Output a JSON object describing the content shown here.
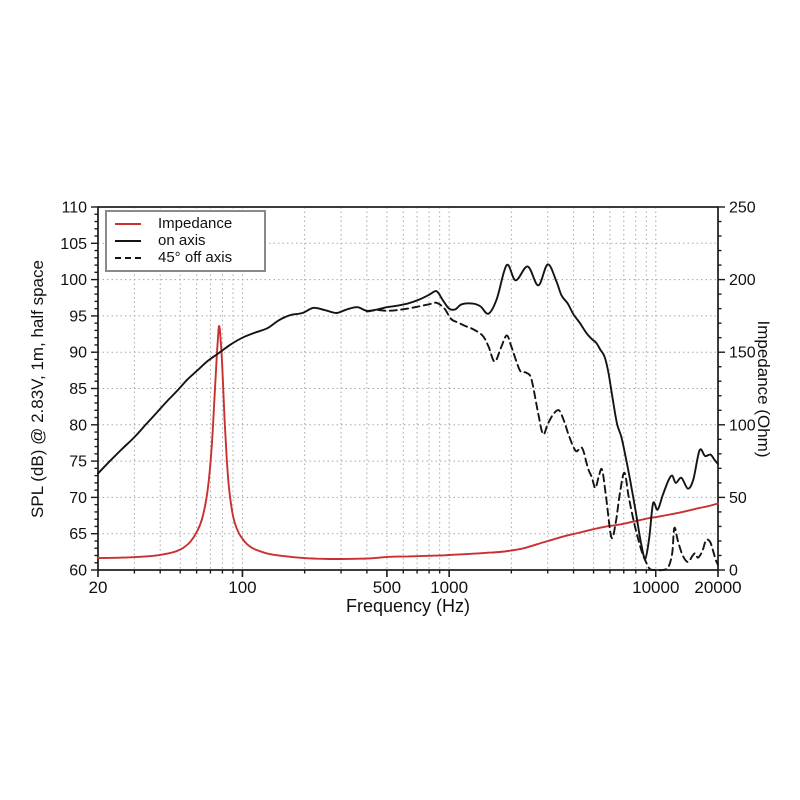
{
  "chart_data": {
    "type": "line",
    "title": "",
    "xlabel": "Frequency (Hz)",
    "ylabel_left": "SPL (dB) @ 2.83V, 1m, half space",
    "ylabel_right": "Impedance (Ohm)",
    "x_scale": "log",
    "x_range": [
      20,
      20000
    ],
    "y_left_range": [
      60,
      110
    ],
    "y_left_major_step": 5,
    "y_left_minor_step": 1,
    "y_right_range": [
      0,
      250
    ],
    "y_right_major_step": 50,
    "y_right_minor_step": 10,
    "grid": true,
    "grid_color": "#a8a8a8",
    "frame_color": "#1a1a1a",
    "x_tick_labels": [
      20,
      100,
      500,
      1000,
      10000,
      20000
    ],
    "y_left_tick_labels": [
      60,
      65,
      70,
      75,
      80,
      85,
      90,
      95,
      100,
      105,
      110
    ],
    "y_right_tick_labels": [
      0,
      50,
      100,
      150,
      200,
      250
    ],
    "legend_position": "top-left",
    "legend": [
      {
        "label": "Impedance",
        "color": "#c93030",
        "style": "solid"
      },
      {
        "label": "on axis",
        "color": "#141414",
        "style": "solid"
      },
      {
        "label": "45° off axis",
        "color": "#141414",
        "style": "dashed"
      }
    ],
    "series": [
      {
        "name": "Impedance",
        "axis": "right",
        "color": "#c93030",
        "style": "solid",
        "unit": "Ohm",
        "points": [
          [
            20,
            8.2
          ],
          [
            24,
            8.4
          ],
          [
            28,
            8.7
          ],
          [
            32,
            9.1
          ],
          [
            36,
            9.6
          ],
          [
            40,
            10.4
          ],
          [
            44,
            11.5
          ],
          [
            48,
            13
          ],
          [
            52,
            15.5
          ],
          [
            56,
            19.5
          ],
          [
            60,
            26
          ],
          [
            64,
            36
          ],
          [
            68,
            56
          ],
          [
            71,
            85
          ],
          [
            73,
            115
          ],
          [
            75,
            145
          ],
          [
            76,
            158
          ],
          [
            77,
            168
          ],
          [
            78,
            163
          ],
          [
            79,
            152
          ],
          [
            80,
            138
          ],
          [
            82,
            103
          ],
          [
            84,
            76
          ],
          [
            86,
            57
          ],
          [
            89,
            41
          ],
          [
            92,
            32
          ],
          [
            96,
            25.5
          ],
          [
            100,
            21.5
          ],
          [
            105,
            18
          ],
          [
            112,
            15
          ],
          [
            120,
            13.2
          ],
          [
            130,
            11.6
          ],
          [
            142,
            10.5
          ],
          [
            158,
            9.6
          ],
          [
            175,
            8.9
          ],
          [
            200,
            8.2
          ],
          [
            230,
            7.8
          ],
          [
            260,
            7.6
          ],
          [
            300,
            7.6
          ],
          [
            350,
            7.7
          ],
          [
            400,
            7.9
          ],
          [
            450,
            8.4
          ],
          [
            500,
            9
          ],
          [
            560,
            9.2
          ],
          [
            630,
            9.4
          ],
          [
            700,
            9.5
          ],
          [
            800,
            9.8
          ],
          [
            900,
            10
          ],
          [
            1000,
            10.3
          ],
          [
            1150,
            10.8
          ],
          [
            1300,
            11.2
          ],
          [
            1500,
            11.8
          ],
          [
            1750,
            12.4
          ],
          [
            2000,
            13.4
          ],
          [
            2300,
            15
          ],
          [
            2700,
            18
          ],
          [
            3100,
            20.5
          ],
          [
            3600,
            23.2
          ],
          [
            4200,
            25.5
          ],
          [
            4900,
            27.8
          ],
          [
            5700,
            29.8
          ],
          [
            6600,
            31.2
          ],
          [
            7700,
            33.2
          ],
          [
            9000,
            35.3
          ],
          [
            10500,
            37
          ],
          [
            12000,
            38.5
          ],
          [
            14000,
            40.5
          ],
          [
            16000,
            42.5
          ],
          [
            18000,
            44
          ],
          [
            20000,
            45.8
          ]
        ]
      },
      {
        "name": "45° off axis",
        "axis": "left",
        "color": "#141414",
        "style": "dashed",
        "unit": "dB",
        "points": [
          [
            400,
            95.6
          ],
          [
            450,
            95.8
          ],
          [
            500,
            95.7
          ],
          [
            560,
            95.8
          ],
          [
            630,
            96
          ],
          [
            710,
            96.3
          ],
          [
            800,
            96.6
          ],
          [
            870,
            96.8
          ],
          [
            950,
            96
          ],
          [
            1020,
            94.6
          ],
          [
            1100,
            94.1
          ],
          [
            1200,
            93.6
          ],
          [
            1300,
            93.2
          ],
          [
            1450,
            92.3
          ],
          [
            1550,
            90.8
          ],
          [
            1660,
            88.7
          ],
          [
            1780,
            90.6
          ],
          [
            1900,
            92.3
          ],
          [
            2000,
            90.8
          ],
          [
            2200,
            87.5
          ],
          [
            2350,
            87.2
          ],
          [
            2500,
            86.3
          ],
          [
            2700,
            81.5
          ],
          [
            2850,
            78.7
          ],
          [
            3000,
            80.1
          ],
          [
            3200,
            81.5
          ],
          [
            3400,
            82
          ],
          [
            3600,
            80.5
          ],
          [
            3800,
            78.5
          ],
          [
            4100,
            76.4
          ],
          [
            4400,
            76.8
          ],
          [
            4700,
            74
          ],
          [
            4900,
            72.8
          ],
          [
            5100,
            71.3
          ],
          [
            5300,
            72.9
          ],
          [
            5500,
            73.8
          ],
          [
            5750,
            70
          ],
          [
            6100,
            64.5
          ],
          [
            6400,
            66.5
          ],
          [
            6700,
            70.5
          ],
          [
            7050,
            73.4
          ],
          [
            7400,
            70
          ],
          [
            7900,
            66.2
          ],
          [
            8500,
            62.8
          ],
          [
            9000,
            61
          ],
          [
            9400,
            60.1
          ],
          [
            10000,
            60
          ],
          [
            10800,
            60
          ],
          [
            11500,
            60.4
          ],
          [
            12000,
            62.3
          ],
          [
            12300,
            65.8
          ],
          [
            12800,
            64
          ],
          [
            13500,
            62
          ],
          [
            14300,
            61.1
          ],
          [
            15000,
            61.9
          ],
          [
            15500,
            62.3
          ],
          [
            16000,
            61.7
          ],
          [
            16800,
            62.6
          ],
          [
            17500,
            64.1
          ],
          [
            18300,
            63.9
          ],
          [
            19000,
            62.5
          ],
          [
            19500,
            61.4
          ],
          [
            20000,
            60.7
          ]
        ]
      },
      {
        "name": "on axis",
        "axis": "left",
        "color": "#141414",
        "style": "solid",
        "unit": "dB",
        "points": [
          [
            20,
            73.3
          ],
          [
            23,
            75.1
          ],
          [
            26,
            76.6
          ],
          [
            30,
            78.3
          ],
          [
            34,
            80
          ],
          [
            38,
            81.5
          ],
          [
            43,
            83.2
          ],
          [
            48,
            84.6
          ],
          [
            54,
            86.2
          ],
          [
            60,
            87.4
          ],
          [
            68,
            88.8
          ],
          [
            77,
            89.9
          ],
          [
            87,
            91
          ],
          [
            100,
            92
          ],
          [
            115,
            92.7
          ],
          [
            132,
            93.3
          ],
          [
            150,
            94.4
          ],
          [
            170,
            95.1
          ],
          [
            195,
            95.4
          ],
          [
            220,
            96.1
          ],
          [
            250,
            95.8
          ],
          [
            285,
            95.4
          ],
          [
            320,
            95.9
          ],
          [
            360,
            96.2
          ],
          [
            400,
            95.7
          ],
          [
            450,
            95.9
          ],
          [
            500,
            96.2
          ],
          [
            560,
            96.4
          ],
          [
            630,
            96.7
          ],
          [
            710,
            97.2
          ],
          [
            800,
            97.9
          ],
          [
            870,
            98.4
          ],
          [
            930,
            97.2
          ],
          [
            1000,
            96
          ],
          [
            1070,
            95.9
          ],
          [
            1150,
            96.6
          ],
          [
            1300,
            96.7
          ],
          [
            1420,
            96.3
          ],
          [
            1550,
            95.3
          ],
          [
            1700,
            97.3
          ],
          [
            1900,
            102
          ],
          [
            2100,
            99.9
          ],
          [
            2400,
            101.8
          ],
          [
            2700,
            99.2
          ],
          [
            3000,
            102.1
          ],
          [
            3300,
            99.8
          ],
          [
            3500,
            97.8
          ],
          [
            3750,
            96.7
          ],
          [
            4000,
            95.2
          ],
          [
            4300,
            94
          ],
          [
            4600,
            92.7
          ],
          [
            4900,
            91.8
          ],
          [
            5150,
            91.3
          ],
          [
            5400,
            90.3
          ],
          [
            5650,
            89.4
          ],
          [
            5900,
            87.2
          ],
          [
            6200,
            83.4
          ],
          [
            6500,
            80.1
          ],
          [
            6800,
            78.4
          ],
          [
            7100,
            76
          ],
          [
            7500,
            72.5
          ],
          [
            8000,
            68
          ],
          [
            8500,
            63.6
          ],
          [
            8900,
            61.6
          ],
          [
            9300,
            64.5
          ],
          [
            9700,
            69.2
          ],
          [
            10200,
            68.3
          ],
          [
            10800,
            70.3
          ],
          [
            11500,
            72.3
          ],
          [
            12000,
            73
          ],
          [
            12500,
            72
          ],
          [
            13300,
            72.7
          ],
          [
            14300,
            71.2
          ],
          [
            15200,
            72.5
          ],
          [
            16300,
            76.5
          ],
          [
            17300,
            75.7
          ],
          [
            18400,
            75.9
          ],
          [
            19200,
            75.2
          ],
          [
            20000,
            74.6
          ]
        ]
      }
    ]
  }
}
